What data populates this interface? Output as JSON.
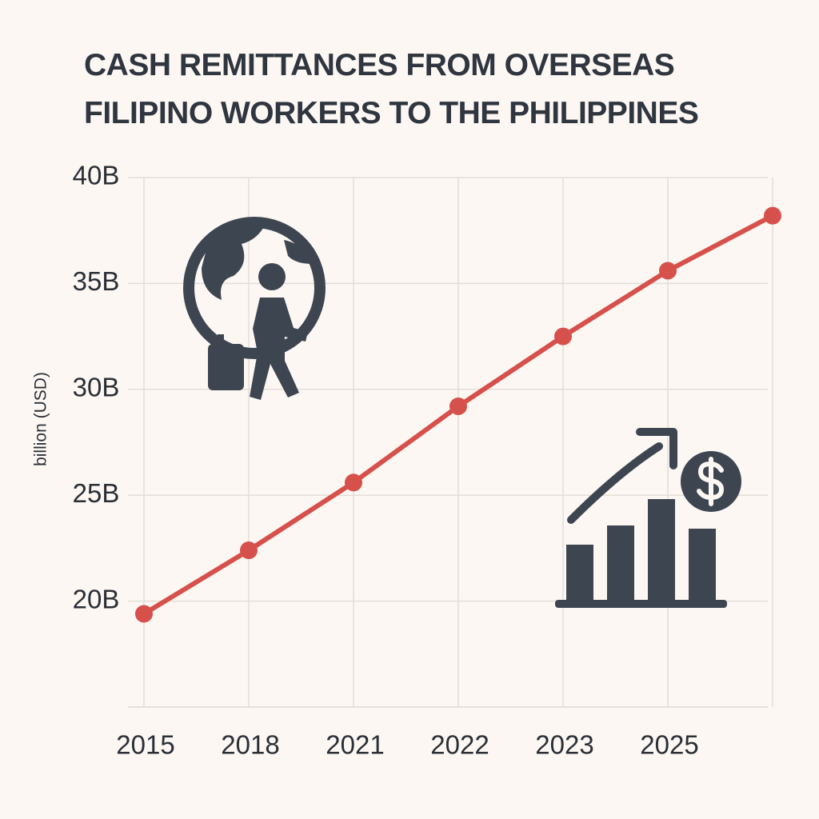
{
  "chart_data": {
    "type": "line",
    "title": "CASH REMITTANCES FROM OVERSEAS FILIPINO WORKERS TO THE PHILIPPINES",
    "y_label": "billion (USD)",
    "categories": [
      "2015",
      "2018",
      "2021",
      "2022",
      "2023",
      "2025",
      null
    ],
    "series": [
      {
        "name": "Cash remittances",
        "color": "#d6504c",
        "values": [
          19.4,
          22.4,
          25.6,
          29.2,
          32.5,
          35.6,
          38.2
        ]
      }
    ],
    "ylim": [
      15,
      40
    ],
    "yticks": [
      {
        "value": 20,
        "label": "20B"
      },
      {
        "value": 25,
        "label": "25B"
      },
      {
        "value": 30,
        "label": "30B"
      },
      {
        "value": 35,
        "label": "35B"
      },
      {
        "value": 40,
        "label": "40B"
      }
    ],
    "grid": true
  }
}
